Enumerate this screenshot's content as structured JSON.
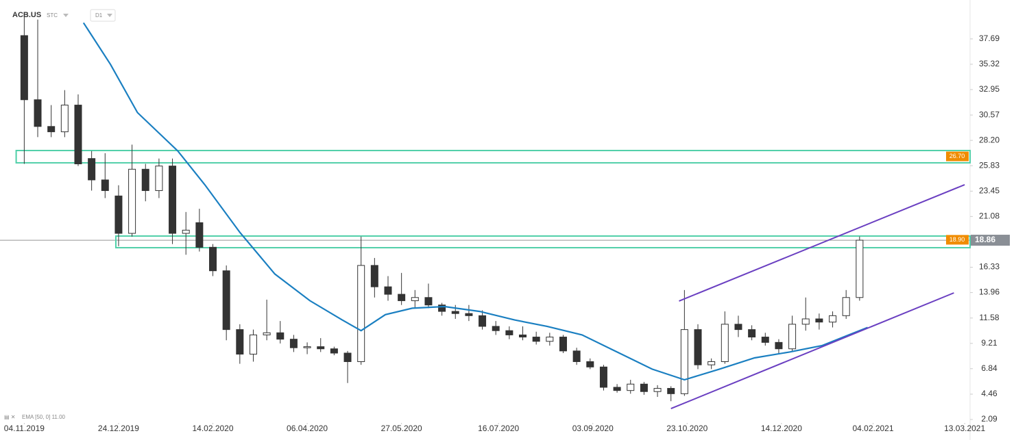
{
  "chart_data": {
    "type": "candlestick",
    "symbol": "ACB.US",
    "source": "STC",
    "interval": "D1",
    "indicator": "EMA [50, 0] 11.00",
    "xlim": [
      -9,
      351
    ],
    "ylim": [
      1.77,
      40.69
    ],
    "xticks": [
      {
        "value": 0,
        "label": "04.11.2019"
      },
      {
        "value": 35,
        "label": "24.12.2019"
      },
      {
        "value": 70,
        "label": "14.02.2020"
      },
      {
        "value": 105,
        "label": "06.04.2020"
      },
      {
        "value": 140,
        "label": "27.05.2020"
      },
      {
        "value": 176,
        "label": "16.07.2020"
      },
      {
        "value": 211,
        "label": "03.09.2020"
      },
      {
        "value": 246,
        "label": "23.10.2020"
      },
      {
        "value": 281,
        "label": "14.12.2020"
      },
      {
        "value": 315,
        "label": "04.02.2021"
      },
      {
        "value": 349,
        "label": "13.03.2021"
      }
    ],
    "yticks": [
      37.69,
      35.32,
      32.95,
      30.57,
      {
        "value": 28.2,
        "label": "28.20"
      },
      25.83,
      23.45,
      21.08,
      18.86,
      16.33,
      13.96,
      11.58,
      9.21,
      6.84,
      4.46,
      2.09
    ],
    "x": [
      0,
      5,
      10,
      15,
      20,
      25,
      30,
      35,
      40,
      45,
      50,
      55,
      60,
      65,
      70,
      75,
      80,
      85,
      90,
      95,
      100,
      105,
      110,
      115,
      120,
      125,
      130,
      135,
      140,
      145,
      150,
      155,
      160,
      165,
      170,
      175,
      180,
      185,
      190,
      195,
      200,
      205,
      210,
      215,
      220,
      225,
      230,
      235,
      240,
      245,
      250,
      255,
      260,
      265,
      270,
      275,
      280,
      285,
      290,
      295,
      300,
      305,
      310
    ],
    "open": [
      38,
      32,
      29.5,
      29,
      31.5,
      26.5,
      24.5,
      23,
      19.5,
      25.5,
      23.5,
      25.8,
      19.5,
      20.5,
      18.2,
      16,
      10.5,
      8.2,
      10,
      10.2,
      9.6,
      8.8,
      8.9,
      8.7,
      8.3,
      7.5,
      16.5,
      14.5,
      13.8,
      13.2,
      13.5,
      12.8,
      12.2,
      12,
      11.8,
      10.8,
      10.4,
      10,
      9.8,
      9.4,
      9.8,
      8.5,
      7.5,
      7,
      5.1,
      4.8,
      5.4,
      4.7,
      5,
      4.5,
      10.5,
      7.2,
      7.5,
      11,
      10.5,
      9.8,
      9.3,
      8.7,
      11,
      11.5,
      11.2,
      11.8,
      13.5
    ],
    "high": [
      40,
      39.5,
      31.5,
      32.9,
      32.5,
      27.2,
      27,
      24,
      27.8,
      26,
      26.5,
      26.5,
      21.5,
      21.8,
      18.5,
      16.5,
      11,
      10.5,
      13.3,
      11.3,
      10,
      9.3,
      9.7,
      8.9,
      8.5,
      19.2,
      17.2,
      15.5,
      15.8,
      14.2,
      14.8,
      13,
      12.8,
      12.8,
      12.3,
      11.3,
      10.8,
      10.8,
      10.3,
      10.2,
      10,
      8.8,
      7.8,
      7.2,
      5.4,
      5.8,
      5.6,
      5.3,
      5.2,
      14.2,
      11,
      7.8,
      12.2,
      11.8,
      10.9,
      10.2,
      9.6,
      11.8,
      13.5,
      12,
      12.2,
      14.2,
      19.2
    ],
    "low": [
      26,
      28.5,
      28.5,
      28.5,
      25.8,
      23.5,
      22.8,
      18.3,
      19.2,
      22.5,
      22.8,
      18.5,
      17.5,
      17.8,
      15.5,
      9.5,
      7.3,
      7.5,
      9.5,
      9.2,
      8.4,
      8.2,
      8.4,
      8.1,
      5.5,
      7.2,
      13.5,
      13.2,
      12.8,
      12.5,
      12.5,
      11.8,
      11.5,
      11.3,
      10.5,
      10,
      9.6,
      9.5,
      9.1,
      9,
      8.3,
      7.2,
      6.8,
      4.8,
      4.6,
      4.5,
      4.4,
      4.2,
      3.8,
      4.3,
      6.8,
      6.8,
      7.3,
      9.8,
      9.5,
      9,
      8.3,
      8.5,
      10.4,
      10.5,
      10.7,
      11.5,
      13.2
    ],
    "close": [
      32,
      29.5,
      29,
      31.5,
      26,
      24.5,
      23.5,
      19.5,
      25.5,
      23.5,
      25.8,
      19.5,
      19.8,
      18.2,
      16,
      10.5,
      8.2,
      10,
      10.2,
      9.6,
      8.8,
      8.9,
      8.7,
      8.3,
      7.5,
      16.5,
      14.5,
      13.8,
      13.2,
      13.5,
      12.8,
      12.2,
      12,
      11.8,
      10.8,
      10.4,
      10,
      9.8,
      9.4,
      9.8,
      8.5,
      7.5,
      7,
      5.1,
      4.8,
      5.4,
      4.7,
      5,
      4.5,
      10.5,
      7.2,
      7.5,
      11,
      10.5,
      9.8,
      9.3,
      8.7,
      11,
      11.5,
      11.2,
      11.8,
      13.5,
      18.86
    ],
    "ema": {
      "color": "#1a7fc1",
      "x": [
        22,
        32,
        42,
        57,
        67,
        80,
        93,
        106,
        118,
        125,
        134,
        144,
        156,
        169,
        182,
        194,
        207,
        220,
        233,
        245,
        258,
        271,
        284,
        296,
        306,
        313
      ],
      "values": [
        39.2,
        35.3,
        30.8,
        27.2,
        24.05,
        19.6,
        15.7,
        13.2,
        11.4,
        10.4,
        11.9,
        12.5,
        12.65,
        12.2,
        11.4,
        10.8,
        10,
        8.4,
        6.8,
        5.8,
        6.8,
        7.85,
        8.4,
        9,
        10,
        10.7
      ]
    },
    "trendlines": [
      {
        "color": "#6a3fc1",
        "x": [
          243,
          349
        ],
        "values": [
          13.17,
          24.05
        ]
      },
      {
        "color": "#6a3fc1",
        "x": [
          240,
          345
        ],
        "values": [
          3.11,
          13.93
        ]
      }
    ],
    "zones": [
      {
        "color": "#4fcfa8",
        "xlim": [
          -3,
          351
        ],
        "ylim": [
          26.1,
          27.25
        ],
        "level": {
          "value": 26.7,
          "label": "26.70"
        }
      },
      {
        "color": "#4fcfa8",
        "xlim": [
          34,
          351
        ],
        "ylim": [
          18.16,
          19.25
        ],
        "level": {
          "value": 18.9,
          "label": "18.90"
        }
      }
    ],
    "last_price": 18.86
  }
}
